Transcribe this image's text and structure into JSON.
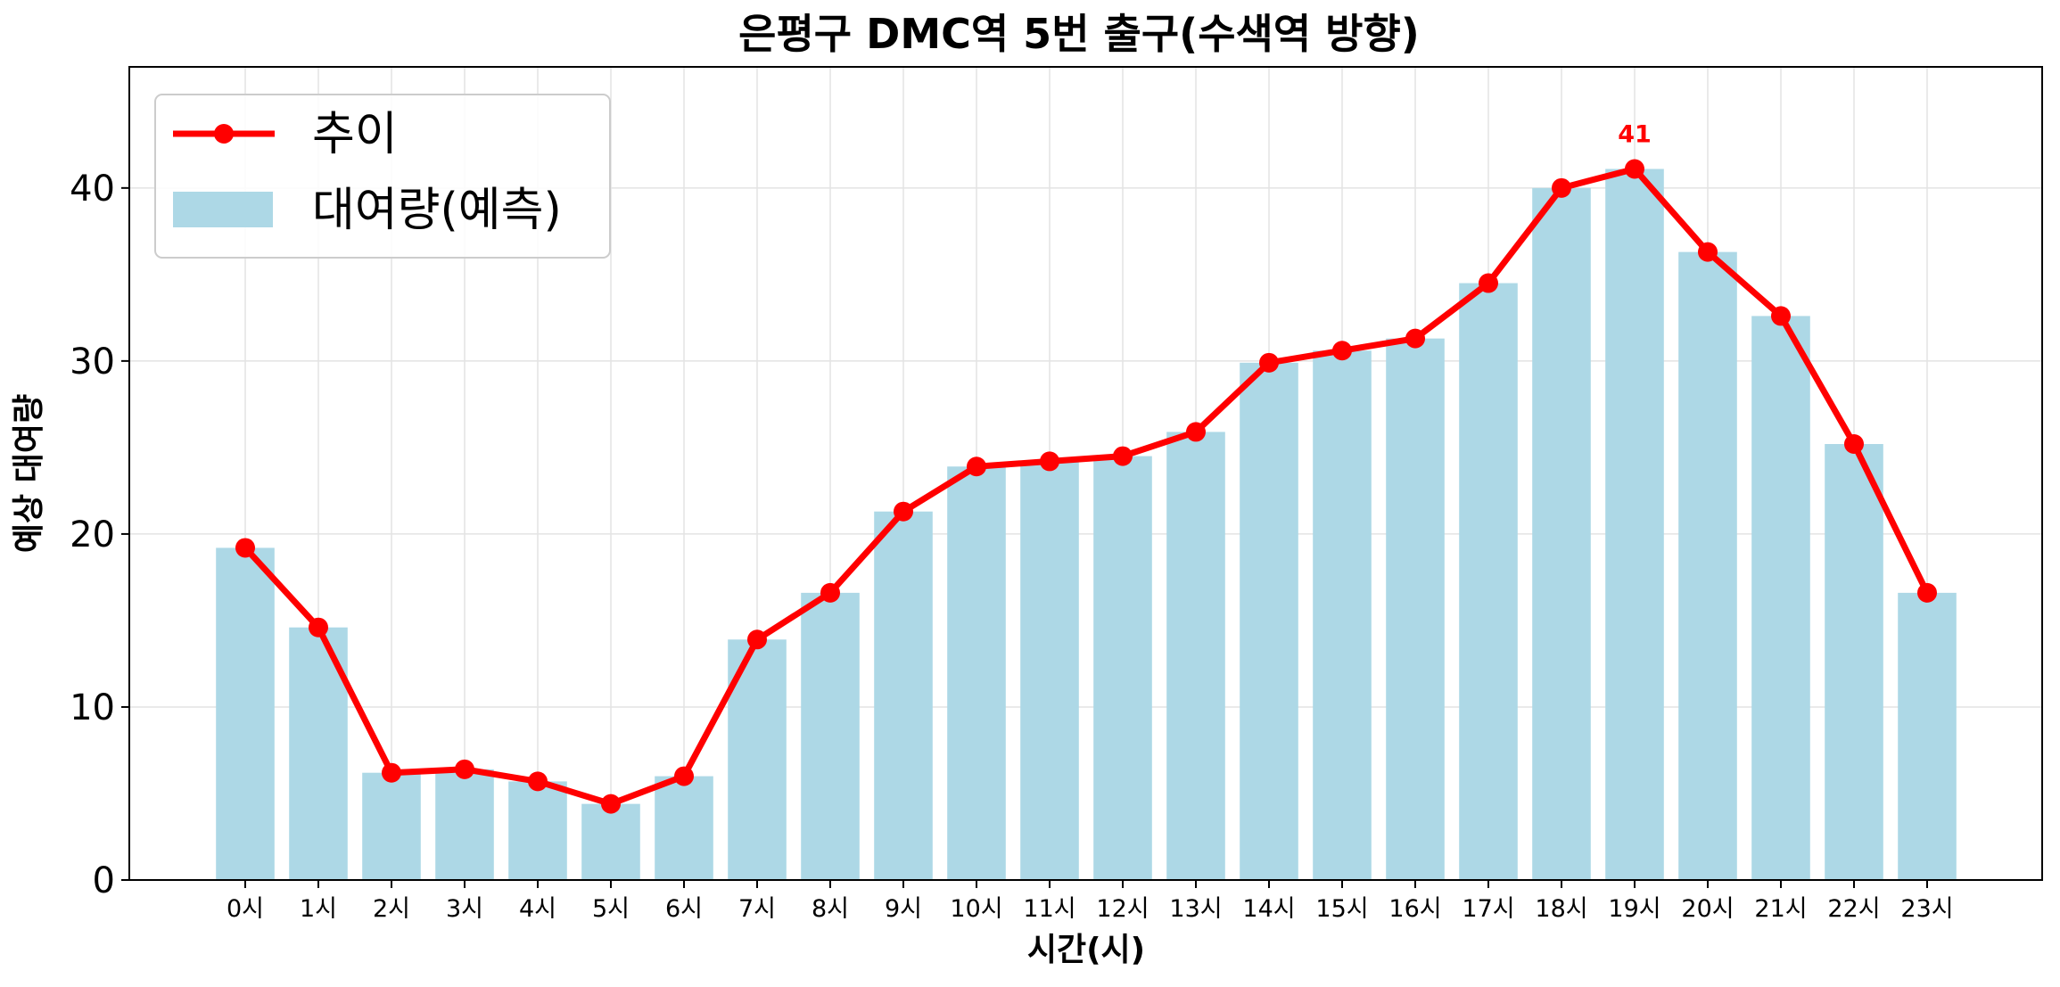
{
  "chart_data": {
    "type": "bar",
    "title": "은평구 DMC역 5번 출구(수색역 방향)",
    "xlabel": "시간(시)",
    "ylabel": "예상 대여량",
    "categories": [
      "0시",
      "1시",
      "2시",
      "3시",
      "4시",
      "5시",
      "6시",
      "7시",
      "8시",
      "9시",
      "10시",
      "11시",
      "12시",
      "13시",
      "14시",
      "15시",
      "16시",
      "17시",
      "18시",
      "19시",
      "20시",
      "21시",
      "22시",
      "23시"
    ],
    "ylim": [
      0,
      47
    ],
    "yticks": [
      "0",
      "10",
      "20",
      "30",
      "40"
    ],
    "grid": true,
    "legend_position": "top-left",
    "series": [
      {
        "name": "대여량(예측)",
        "kind": "bar",
        "color": "#add8e6",
        "values": [
          19.2,
          14.6,
          6.2,
          6.4,
          5.7,
          4.4,
          6.0,
          13.9,
          16.6,
          21.3,
          23.9,
          24.2,
          24.5,
          25.9,
          29.9,
          30.6,
          31.3,
          34.5,
          40.0,
          41.1,
          36.3,
          32.6,
          25.2,
          16.6
        ]
      },
      {
        "name": "추이",
        "kind": "line",
        "color": "#ff0000",
        "values": [
          19.2,
          14.6,
          6.2,
          6.4,
          5.7,
          4.4,
          6.0,
          13.9,
          16.6,
          21.3,
          23.9,
          24.2,
          24.5,
          25.9,
          29.9,
          30.6,
          31.3,
          34.5,
          40.0,
          41.1,
          36.3,
          32.6,
          25.2,
          16.6
        ]
      }
    ],
    "annotations": [
      {
        "category": "19시",
        "value": 41.1,
        "text": "41"
      }
    ]
  }
}
